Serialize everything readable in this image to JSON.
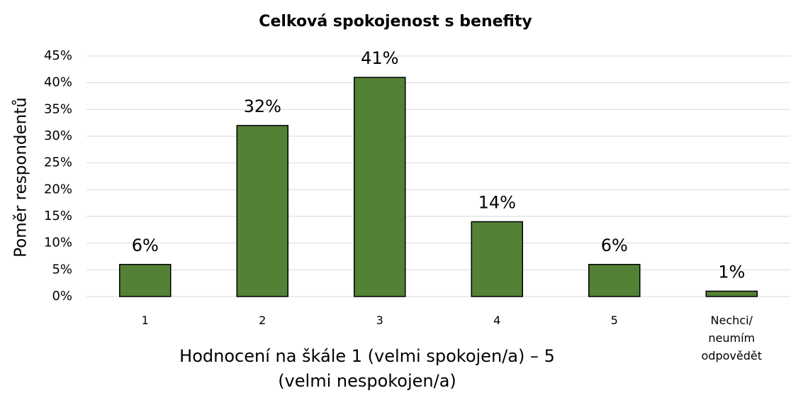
{
  "chart_data": {
    "type": "bar",
    "title": "Celková spokojenost s benefity",
    "categories": [
      "1",
      "2",
      "3",
      "4",
      "5",
      "Nechci/ neumím odpovědět"
    ],
    "values": [
      6,
      32,
      41,
      14,
      6,
      1
    ],
    "value_labels": [
      "6%",
      "32%",
      "41%",
      "14%",
      "6%",
      "1%"
    ],
    "color": "#538135",
    "xlabel": "Hodnocení na škále 1 (velmi spokojen/a) – 5 (velmi nespokojen/a)",
    "ylabel": "Poměr respondentů",
    "ylim": [
      0,
      45
    ],
    "yticks": [
      {
        "value": 0,
        "label": "0%"
      },
      {
        "value": 5,
        "label": "5%"
      },
      {
        "value": 10,
        "label": "10%"
      },
      {
        "value": 15,
        "label": "15%"
      },
      {
        "value": 20,
        "label": "20%"
      },
      {
        "value": 25,
        "label": "25%"
      },
      {
        "value": 30,
        "label": "30%"
      },
      {
        "value": 35,
        "label": "35%"
      },
      {
        "value": 40,
        "label": "40%"
      },
      {
        "value": 45,
        "label": "45%"
      }
    ],
    "grid": true
  }
}
